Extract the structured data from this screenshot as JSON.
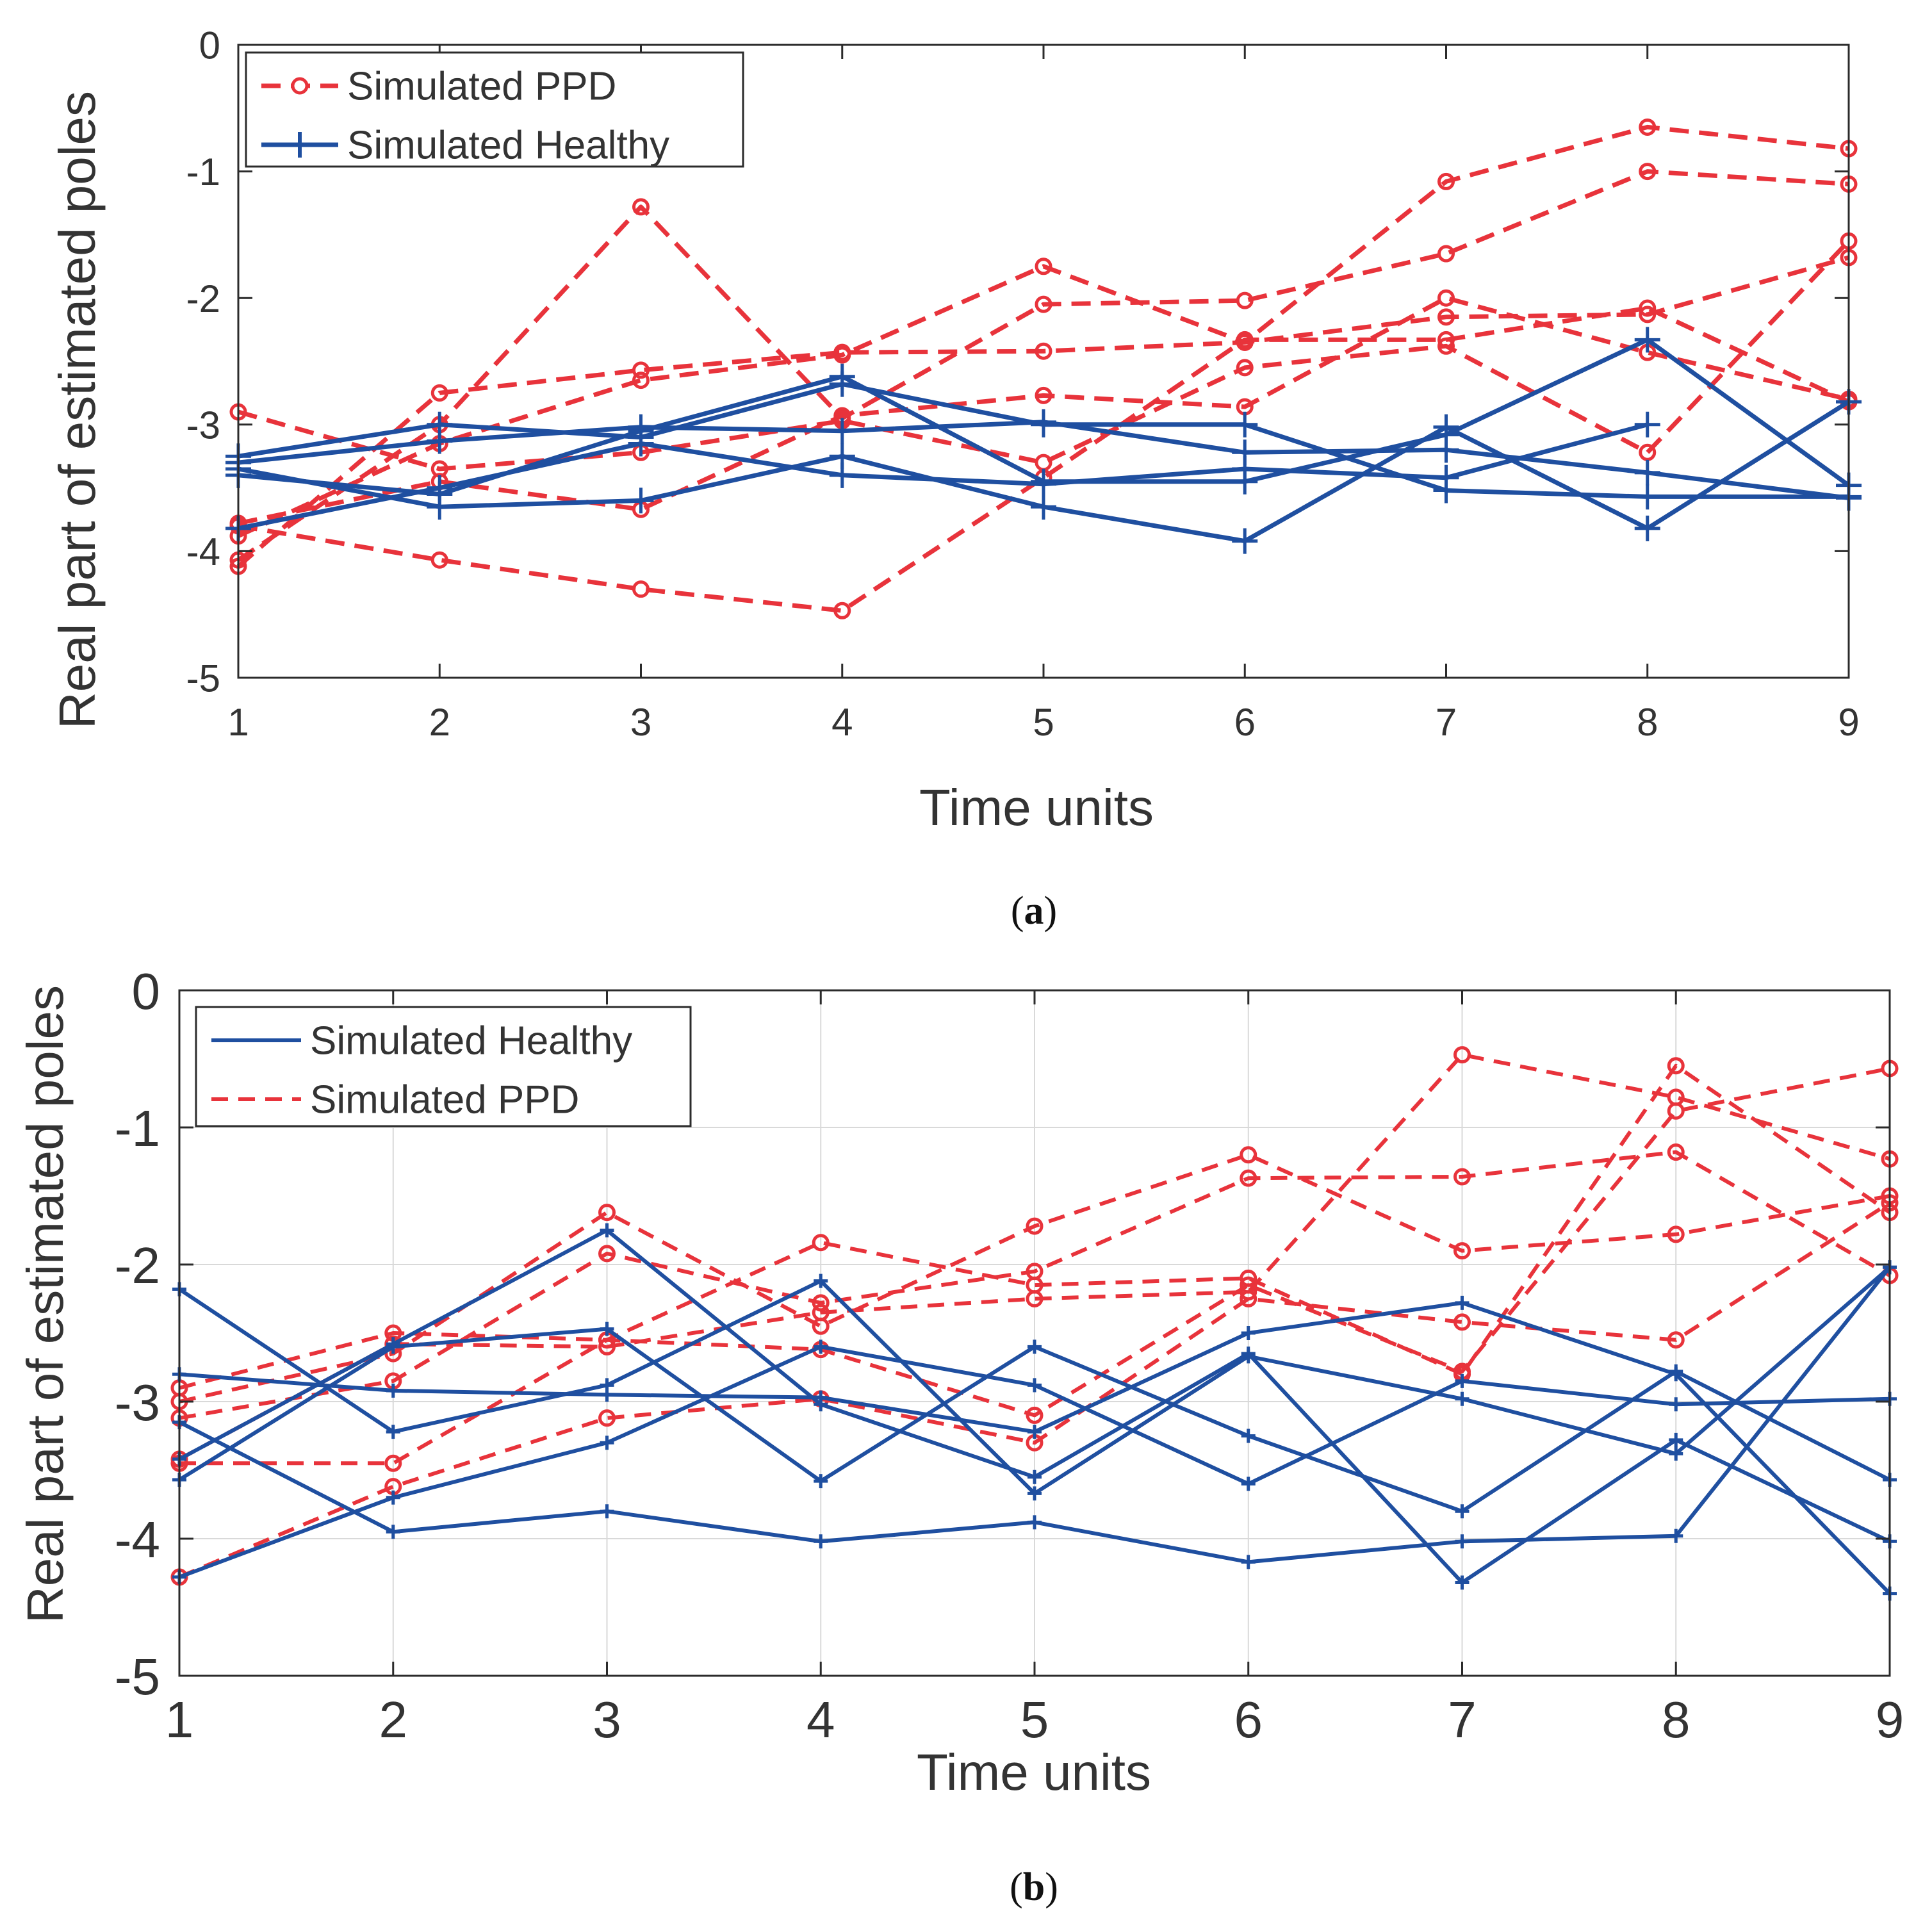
{
  "colors": {
    "ppd": "#e8333b",
    "healthy": "#1f4fa0",
    "axis": "#2b2b2b",
    "text": "#333333",
    "grid": "#d9d9d9"
  },
  "chart_data": [
    {
      "id": "a",
      "type": "line",
      "caption_label": "a",
      "xlabel": "Time units",
      "ylabel": "Real part of estimated poles",
      "xlim": [
        1,
        9
      ],
      "ylim": [
        -5,
        0
      ],
      "xticks": [
        1,
        2,
        3,
        4,
        5,
        6,
        7,
        8,
        9
      ],
      "yticks": [
        0,
        -1,
        -2,
        -3,
        -4,
        -5
      ],
      "grid": false,
      "legend_position": "top-left",
      "legend": [
        {
          "label": "Simulated PPD",
          "style": "ppd"
        },
        {
          "label": "Simulated Healthy",
          "style": "healthy"
        }
      ],
      "x": [
        1,
        2,
        3,
        4,
        5,
        6,
        7,
        8,
        9
      ],
      "series": [
        {
          "name": "Simulated PPD",
          "style": "ppd",
          "values": [
            -4.07,
            -3.0,
            -1.28,
            -2.95,
            -2.05,
            -2.02,
            -1.65,
            -1.0,
            -1.1
          ]
        },
        {
          "name": "Simulated PPD",
          "style": "ppd",
          "values": [
            -4.12,
            -2.75,
            -2.57,
            -2.43,
            -2.42,
            -2.35,
            -1.08,
            -0.65,
            -0.82
          ]
        },
        {
          "name": "Simulated PPD",
          "style": "ppd",
          "values": [
            -3.88,
            -3.15,
            -2.65,
            -2.45,
            -1.75,
            -2.35,
            -2.15,
            -2.13,
            -1.68
          ]
        },
        {
          "name": "Simulated PPD",
          "style": "ppd",
          "values": [
            -3.78,
            -3.45,
            -3.67,
            -2.93,
            -2.77,
            -2.86,
            -2.0,
            -2.43,
            -2.8
          ]
        },
        {
          "name": "Simulated PPD",
          "style": "ppd",
          "values": [
            -2.9,
            -3.35,
            -3.22,
            -2.97,
            -3.3,
            -2.55,
            -2.38,
            -3.22,
            -1.55
          ]
        },
        {
          "name": "Simulated PPD",
          "style": "ppd",
          "values": [
            -3.8,
            -4.07,
            -4.3,
            -4.47,
            -3.42,
            -2.33,
            -2.33,
            -2.08,
            -2.82
          ]
        },
        {
          "name": "Simulated Healthy",
          "style": "healthy",
          "values": [
            -3.25,
            -3.0,
            -3.1,
            -2.68,
            -3.0,
            -3.0,
            -3.52,
            -3.57,
            -3.57
          ]
        },
        {
          "name": "Simulated Healthy",
          "style": "healthy",
          "values": [
            -3.3,
            -3.13,
            -3.02,
            -3.05,
            -2.98,
            -3.22,
            -3.2,
            -3.38,
            -3.58
          ]
        },
        {
          "name": "Simulated Healthy",
          "style": "healthy",
          "values": [
            -3.4,
            -3.55,
            -3.05,
            -2.62,
            -3.45,
            -3.45,
            -3.08,
            -2.33,
            -3.48
          ]
        },
        {
          "name": "Simulated Healthy",
          "style": "healthy",
          "values": [
            -3.35,
            -3.65,
            -3.6,
            -3.25,
            -3.65,
            -3.92,
            -3.02,
            -3.82,
            -2.82
          ]
        },
        {
          "name": "Simulated Healthy",
          "style": "healthy",
          "values": [
            -3.82,
            -3.5,
            -3.15,
            -3.4,
            -3.47,
            -3.35,
            -3.42,
            -3.0,
            null
          ]
        }
      ]
    },
    {
      "id": "b",
      "type": "line",
      "caption_label": "b",
      "xlabel": "Time units",
      "ylabel": "Real part of estimated poles",
      "xlim": [
        1,
        9
      ],
      "ylim": [
        -5,
        0
      ],
      "xticks": [
        1,
        2,
        3,
        4,
        5,
        6,
        7,
        8,
        9
      ],
      "yticks": [
        0,
        -1,
        -2,
        -3,
        -4,
        -5
      ],
      "grid": true,
      "legend_position": "top-left",
      "legend": [
        {
          "label": "Simulated Healthy",
          "style": "healthy-plain"
        },
        {
          "label": "Simulated PPD",
          "style": "ppd-plain"
        }
      ],
      "x": [
        1,
        2,
        3,
        4,
        5,
        6,
        7,
        8,
        9
      ],
      "series": [
        {
          "name": "Simulated PPD",
          "style": "ppd",
          "values": [
            -2.9,
            -2.5,
            -2.55,
            -1.84,
            -2.15,
            -2.1,
            -2.8,
            -0.55,
            -1.62
          ]
        },
        {
          "name": "Simulated PPD",
          "style": "ppd",
          "values": [
            -3.0,
            -2.65,
            -1.62,
            -2.45,
            -1.72,
            -1.2,
            -1.9,
            -1.78,
            -1.5
          ]
        },
        {
          "name": "Simulated PPD",
          "style": "ppd",
          "values": [
            -3.12,
            -2.85,
            -1.92,
            -2.28,
            -2.05,
            -1.37,
            -1.36,
            -1.18,
            -2.08
          ]
        },
        {
          "name": "Simulated PPD",
          "style": "ppd",
          "values": [
            -3.42,
            -2.58,
            -2.6,
            -2.35,
            -2.25,
            -2.2,
            -0.47,
            -0.78,
            -1.23
          ]
        },
        {
          "name": "Simulated PPD",
          "style": "ppd",
          "values": [
            -3.45,
            -3.45,
            -2.55,
            -2.62,
            -3.1,
            -2.15,
            -2.78,
            -0.88,
            -0.57
          ]
        },
        {
          "name": "Simulated PPD",
          "style": "ppd",
          "values": [
            -4.28,
            -3.62,
            -3.12,
            -2.98,
            -3.3,
            -2.25,
            -2.42,
            -2.55,
            -1.55
          ]
        },
        {
          "name": "Simulated Healthy",
          "style": "healthy",
          "values": [
            -2.18,
            -3.22,
            -2.88,
            -2.12,
            -3.67,
            -2.67,
            -2.98,
            -3.38,
            -2.02
          ]
        },
        {
          "name": "Simulated Healthy",
          "style": "healthy",
          "values": [
            -2.8,
            -2.92,
            -2.95,
            -2.97,
            -3.22,
            -2.5,
            -2.28,
            -2.8,
            -4.4
          ]
        },
        {
          "name": "Simulated Healthy",
          "style": "healthy",
          "values": [
            -3.15,
            -3.95,
            -3.8,
            -4.02,
            -3.88,
            -4.17,
            -4.02,
            -3.98,
            -2.02
          ]
        },
        {
          "name": "Simulated Healthy",
          "style": "healthy",
          "values": [
            -3.57,
            -2.6,
            -2.47,
            -3.58,
            -2.6,
            -3.25,
            -3.8,
            -2.78,
            -3.57
          ]
        },
        {
          "name": "Simulated Healthy",
          "style": "healthy",
          "values": [
            -4.28,
            -3.7,
            -3.3,
            -2.6,
            -2.88,
            -3.6,
            -2.85,
            -3.02,
            -2.98
          ]
        },
        {
          "name": "Simulated Healthy",
          "style": "healthy",
          "values": [
            -3.42,
            -2.58,
            -1.75,
            -3.02,
            -3.55,
            -2.65,
            -4.32,
            -3.28,
            -4.02
          ]
        }
      ]
    }
  ]
}
